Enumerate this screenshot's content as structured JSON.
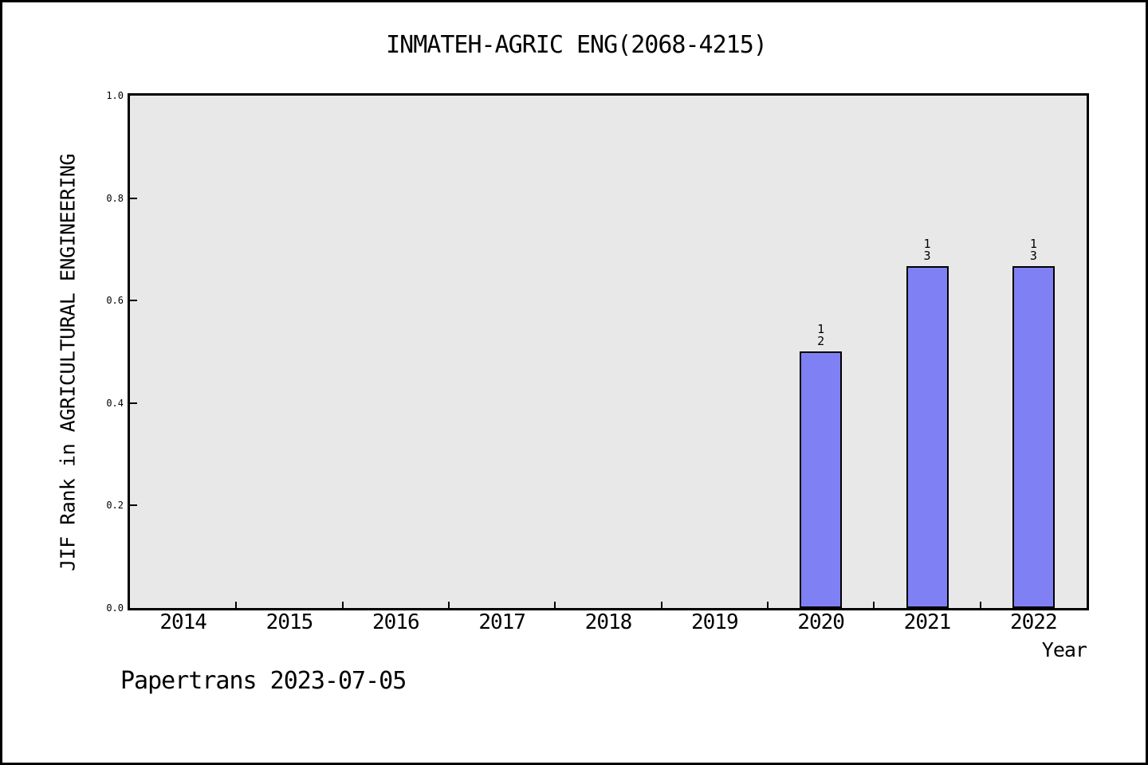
{
  "watermark": "Papertrans 2023-07-05",
  "chart_data": {
    "type": "bar",
    "title": "INMATEH-AGRIC ENG(2068-4215)",
    "xlabel": "Year",
    "ylabel": "JIF Rank in AGRICULTURAL ENGINEERING",
    "categories": [
      "2014",
      "2015",
      "2016",
      "2017",
      "2018",
      "2019",
      "2020",
      "2021",
      "2022"
    ],
    "values": [
      null,
      null,
      null,
      null,
      null,
      null,
      0.5,
      0.667,
      0.667
    ],
    "bar_annotations": [
      null,
      null,
      null,
      null,
      null,
      null,
      [
        "1",
        "2"
      ],
      [
        "1",
        "3"
      ],
      [
        "1",
        "3"
      ]
    ],
    "ytick_labels": [
      "0.0",
      "0.2",
      "0.4",
      "0.6",
      "0.8",
      "1.0"
    ],
    "ytick_values": [
      0.0,
      0.2,
      0.4,
      0.6,
      0.8,
      1.0
    ],
    "ylim": [
      0.0,
      1.0
    ],
    "grid": false,
    "legend": null,
    "colors": {
      "bar_fill": "#8080f5",
      "bar_border": "#000000",
      "plot_background": "#e8e8e8",
      "text": "#000000"
    }
  }
}
